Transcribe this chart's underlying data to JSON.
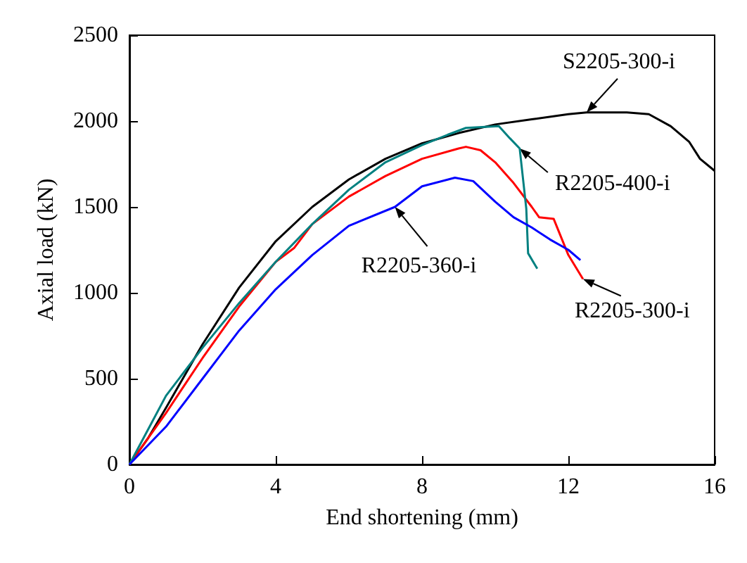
{
  "chart_data": {
    "type": "line",
    "xlabel": "End shortening (mm)",
    "ylabel": "Axial load (kN)",
    "xlim": [
      0,
      16
    ],
    "xticks": [
      0,
      4,
      8,
      12,
      16
    ],
    "ylim": [
      0,
      2500
    ],
    "yticks": [
      0,
      500,
      1000,
      1500,
      2000,
      2500
    ],
    "grid": false,
    "marker": "none",
    "line_style": "solid",
    "series": [
      {
        "color": "#000000",
        "x": [
          0,
          0.5,
          1,
          2,
          3,
          4,
          5,
          6,
          7,
          8,
          9,
          10,
          11,
          12,
          12.5,
          13,
          13.6,
          14.2,
          14.8,
          15.3,
          15.6,
          16
        ],
        "values": [
          0,
          150,
          330,
          700,
          1030,
          1300,
          1500,
          1660,
          1780,
          1870,
          1930,
          1980,
          2010,
          2040,
          2050,
          2050,
          2050,
          2040,
          1970,
          1880,
          1780,
          1710
        ]
      },
      {
        "color": "#ff0000",
        "x": [
          0,
          0.5,
          1,
          2,
          3,
          4,
          4.5,
          5,
          6,
          7,
          8,
          9,
          9.2,
          9.6,
          10,
          10.5,
          11,
          11.2,
          11.6,
          12,
          12.4
        ],
        "values": [
          0,
          150,
          300,
          620,
          920,
          1180,
          1260,
          1400,
          1560,
          1680,
          1780,
          1840,
          1850,
          1830,
          1760,
          1640,
          1500,
          1440,
          1430,
          1220,
          1080
        ]
      },
      {
        "color": "#008080",
        "x": [
          0,
          0.5,
          1,
          2,
          3,
          4,
          5,
          6,
          7,
          8,
          8.7,
          9.2,
          10.1,
          10.4,
          10.67,
          10.85,
          10.9,
          11.15
        ],
        "values": [
          0,
          200,
          400,
          680,
          940,
          1180,
          1400,
          1600,
          1760,
          1860,
          1920,
          1960,
          1970,
          1900,
          1840,
          1490,
          1230,
          1140
        ]
      },
      {
        "color": "#0000ff",
        "x": [
          0,
          1,
          2,
          3,
          4,
          5,
          6,
          7.26,
          8,
          8.9,
          9.4,
          10,
          10.5,
          11,
          11.5,
          12,
          12.33
        ],
        "values": [
          0,
          220,
          500,
          780,
          1020,
          1220,
          1390,
          1500,
          1620,
          1670,
          1650,
          1530,
          1440,
          1380,
          1310,
          1250,
          1190
        ]
      }
    ],
    "annotations": [
      {
        "text": "S2205-300-i",
        "x": 12.5,
        "y": 2050
      },
      {
        "text": "R2205-400-i",
        "x": 10.67,
        "y": 1840
      },
      {
        "text": "R2205-360-i",
        "x": 7.26,
        "y": 1500
      },
      {
        "text": "R2205-300-i",
        "x": 12.4,
        "y": 1080
      }
    ]
  }
}
